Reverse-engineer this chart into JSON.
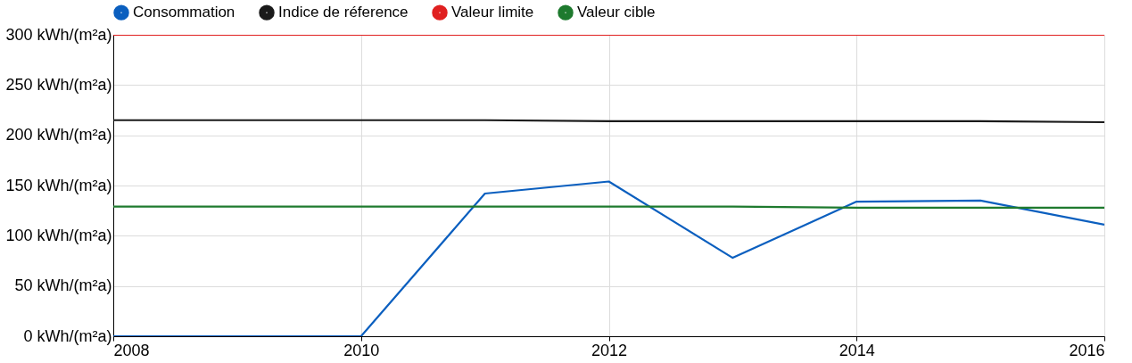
{
  "chart_data": {
    "type": "line",
    "x": [
      2008,
      2009,
      2010,
      2011,
      2012,
      2013,
      2014,
      2015,
      2016
    ],
    "series": [
      {
        "name": "Consommation",
        "color": "#0b5fbf",
        "values": [
          0,
          0,
          0,
          142,
          154,
          78,
          134,
          135,
          111
        ]
      },
      {
        "name": "Indice de réference",
        "color": "#1a1a1a",
        "values": [
          215,
          215,
          215,
          215,
          214,
          214,
          214,
          214,
          213
        ]
      },
      {
        "name": "Valeur limite",
        "color": "#e02020",
        "values": [
          300,
          300,
          300,
          300,
          300,
          300,
          300,
          300,
          300
        ]
      },
      {
        "name": "Valeur cible",
        "color": "#1e7a2e",
        "values": [
          129,
          129,
          129,
          129,
          129,
          129,
          128,
          128,
          128
        ]
      }
    ],
    "xlim": [
      2008,
      2016
    ],
    "xticks": [
      2008,
      2010,
      2012,
      2014,
      2016
    ],
    "ylim": [
      0,
      300
    ],
    "yticks": [
      {
        "value": 0,
        "label": "0 kWh/(m²a)"
      },
      {
        "value": 50,
        "label": "50 kWh/(m²a)"
      },
      {
        "value": 100,
        "label": "100 kWh/(m²a)"
      },
      {
        "value": 150,
        "label": "150 kWh/(m²a)"
      },
      {
        "value": 200,
        "label": "200 kWh/(m²a)"
      },
      {
        "value": 250,
        "label": "250 kWh/(m²a)"
      },
      {
        "value": 300,
        "label": "300 kWh/(m²a)"
      }
    ],
    "grid": true,
    "legend": "top",
    "marker": "none",
    "line_style": "solid"
  }
}
